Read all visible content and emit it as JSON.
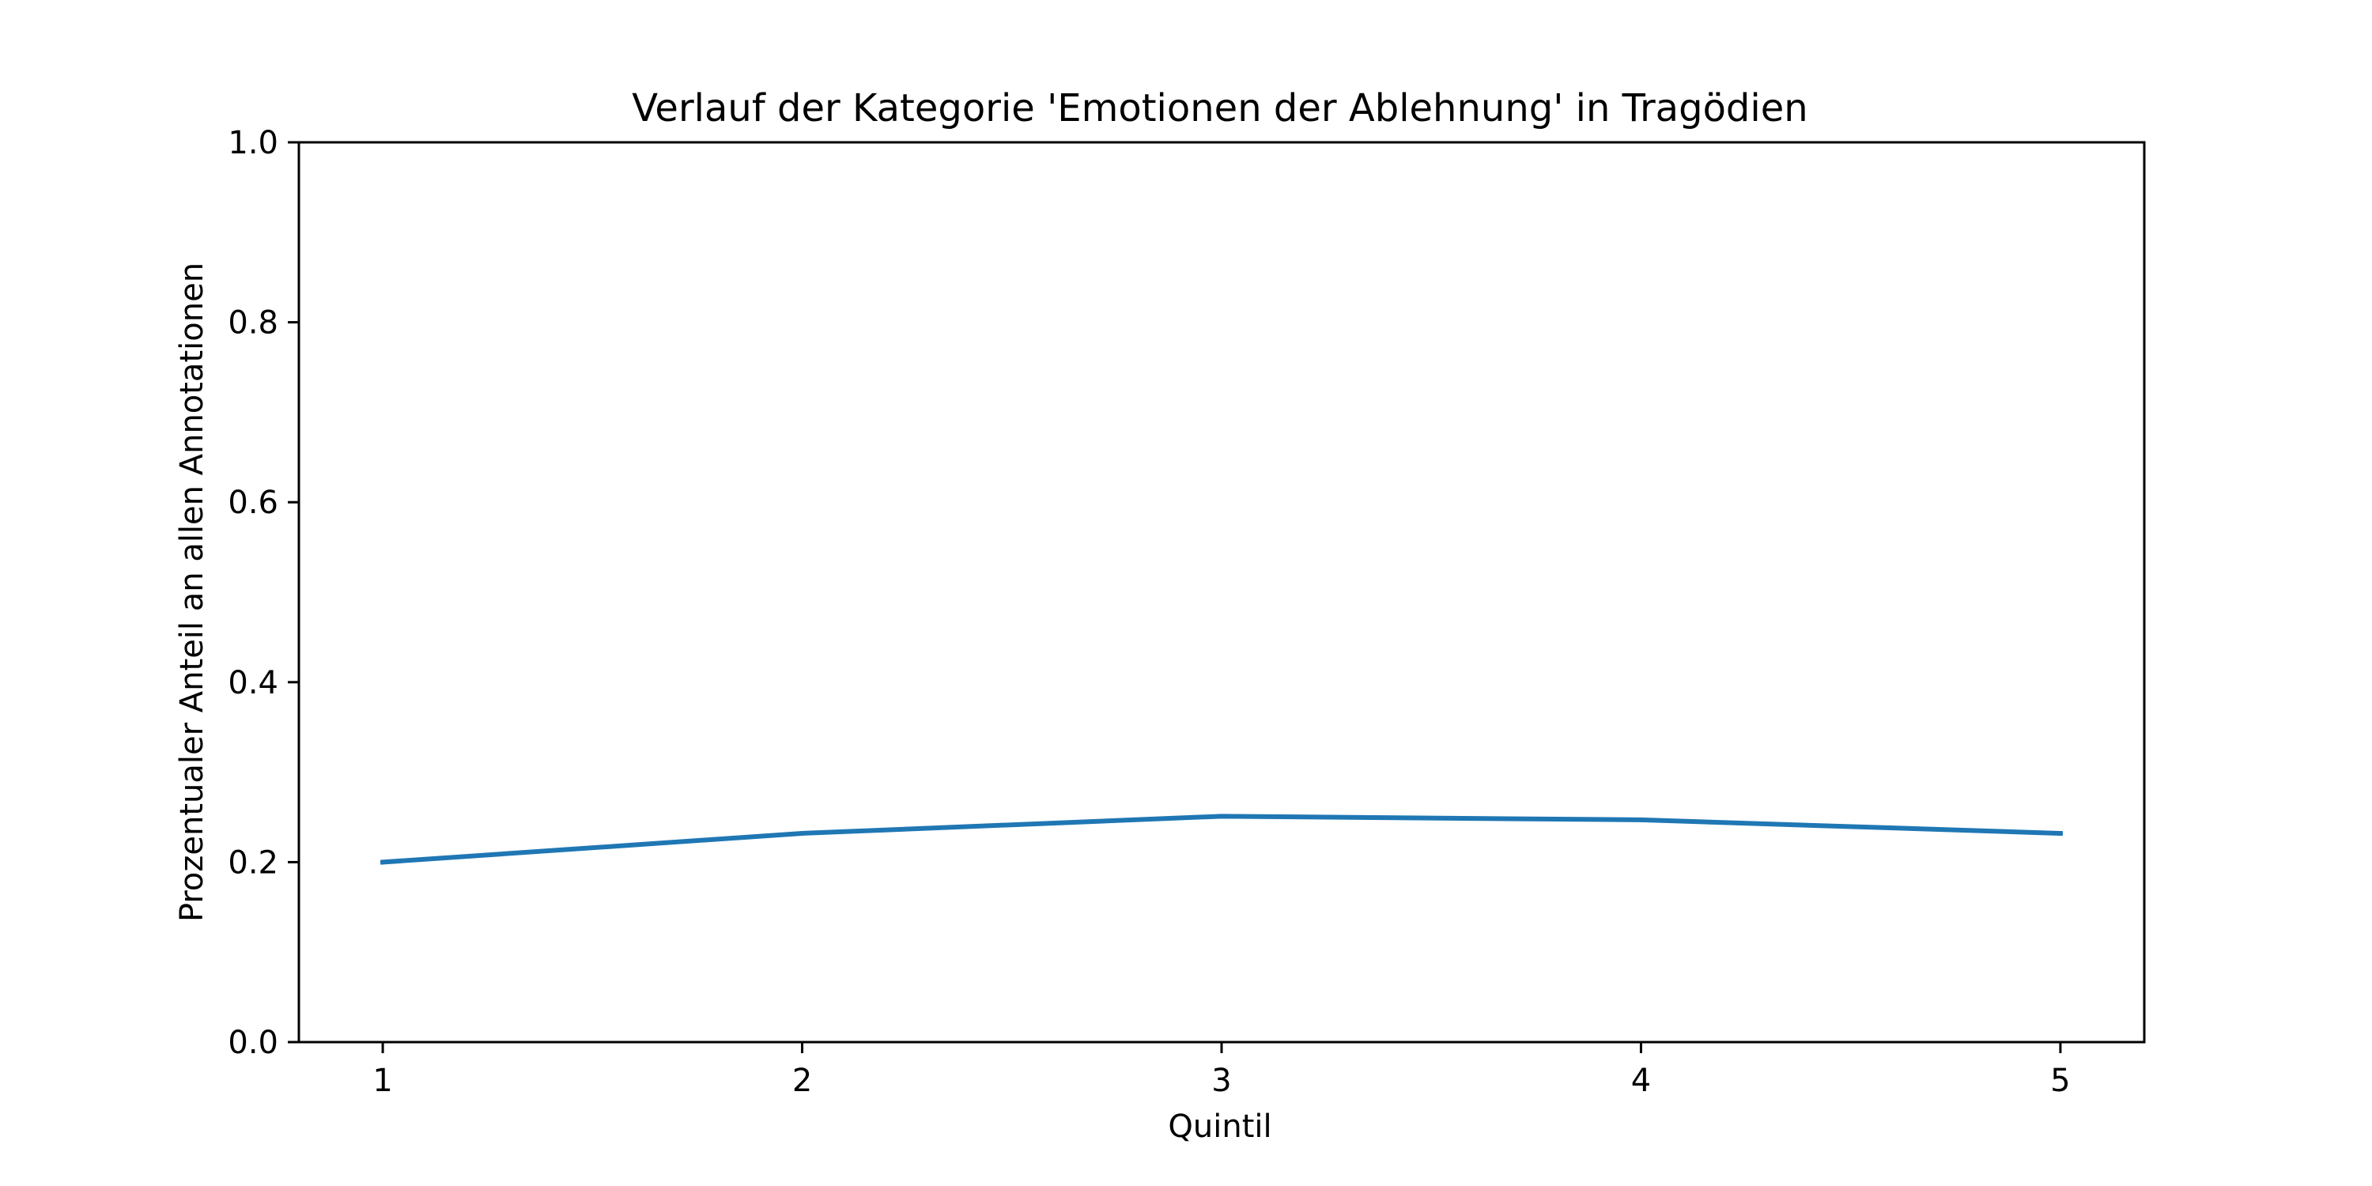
{
  "chart_data": {
    "type": "line",
    "title": "Verlauf der Kategorie 'Emotionen der Ablehnung' in Tragödien",
    "xlabel": "Quintil",
    "ylabel": "Prozentualer Anteil an allen Annotationen",
    "x": [
      1,
      2,
      3,
      4,
      5
    ],
    "x_tick_labels": [
      "1",
      "2",
      "3",
      "4",
      "5"
    ],
    "xlim": [
      0.8,
      5.2
    ],
    "ylim": [
      0.0,
      1.0
    ],
    "y_ticks": [
      0.0,
      0.2,
      0.4,
      0.6,
      0.8,
      1.0
    ],
    "y_tick_labels": [
      "0.0",
      "0.2",
      "0.4",
      "0.6",
      "0.8",
      "1.0"
    ],
    "grid": false,
    "series": [
      {
        "values": [
          0.2,
          0.232,
          0.251,
          0.247,
          0.232
        ],
        "color": "#1f77b4"
      }
    ]
  }
}
